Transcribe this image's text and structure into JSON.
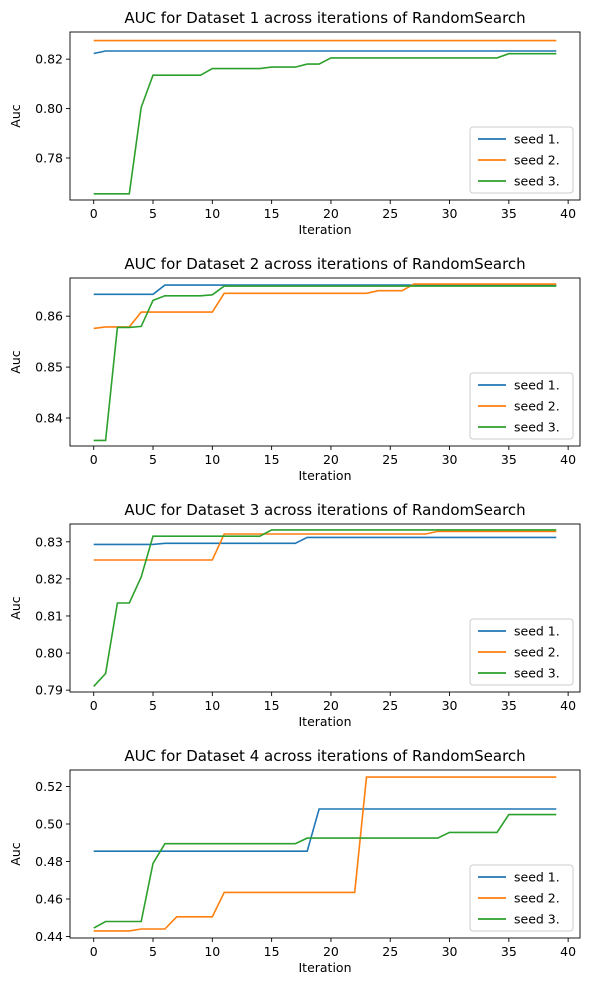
{
  "chart_data": [
    {
      "type": "line",
      "title": "AUC for Dataset 1 across iterations of RandomSearch",
      "xlabel": "Iteration",
      "ylabel": "Auc",
      "xlim": [
        -2,
        41
      ],
      "ylim": [
        0.763,
        0.831
      ],
      "xticks": [
        0,
        5,
        10,
        15,
        20,
        25,
        30,
        35,
        40
      ],
      "yticks": [
        0.78,
        0.8,
        0.82
      ],
      "ytick_labels": [
        "0.78",
        "0.80",
        "0.82"
      ],
      "legend": "lower-right",
      "colors": [
        "#1f77b4",
        "#ff7f0e",
        "#2ca02c"
      ],
      "series": [
        {
          "name": "seed 1.",
          "x": [
            0,
            1,
            39
          ],
          "y": [
            0.8223,
            0.8233,
            0.8233
          ]
        },
        {
          "name": "seed 2.",
          "x": [
            0,
            39
          ],
          "y": [
            0.8275,
            0.8275
          ]
        },
        {
          "name": "seed 3.",
          "x": [
            0,
            3,
            4,
            5,
            9,
            10,
            14,
            15,
            17,
            18,
            19,
            20,
            34,
            35,
            39
          ],
          "y": [
            0.7655,
            0.7655,
            0.8005,
            0.8135,
            0.8135,
            0.8162,
            0.8162,
            0.8168,
            0.8168,
            0.818,
            0.818,
            0.8205,
            0.8205,
            0.8222,
            0.8222
          ]
        }
      ]
    },
    {
      "type": "line",
      "title": "AUC for Dataset 2 across iterations of RandomSearch",
      "xlabel": "Iteration",
      "ylabel": "Auc",
      "xlim": [
        -2,
        41
      ],
      "ylim": [
        0.8345,
        0.8675
      ],
      "xticks": [
        0,
        5,
        10,
        15,
        20,
        25,
        30,
        35,
        40
      ],
      "yticks": [
        0.84,
        0.85,
        0.86
      ],
      "ytick_labels": [
        "0.84",
        "0.85",
        "0.86"
      ],
      "legend": "lower-right",
      "colors": [
        "#1f77b4",
        "#ff7f0e",
        "#2ca02c"
      ],
      "series": [
        {
          "name": "seed 1.",
          "x": [
            0,
            5,
            6,
            39
          ],
          "y": [
            0.8643,
            0.8643,
            0.8661,
            0.8661
          ]
        },
        {
          "name": "seed 2.",
          "x": [
            0,
            1,
            3,
            4,
            10,
            11,
            23,
            24,
            26,
            27,
            39
          ],
          "y": [
            0.8576,
            0.8579,
            0.8579,
            0.8608,
            0.8608,
            0.8645,
            0.8645,
            0.865,
            0.865,
            0.8663,
            0.8663
          ]
        },
        {
          "name": "seed 3.",
          "x": [
            0,
            1,
            2,
            3,
            4,
            5,
            6,
            9,
            10,
            11,
            39
          ],
          "y": [
            0.8356,
            0.8356,
            0.8578,
            0.8578,
            0.858,
            0.8631,
            0.864,
            0.864,
            0.8642,
            0.8659,
            0.8659
          ]
        }
      ]
    },
    {
      "type": "line",
      "title": "AUC for Dataset 3 across iterations of RandomSearch",
      "xlabel": "Iteration",
      "ylabel": "Auc",
      "xlim": [
        -2,
        41
      ],
      "ylim": [
        0.7895,
        0.8348
      ],
      "xticks": [
        0,
        5,
        10,
        15,
        20,
        25,
        30,
        35,
        40
      ],
      "yticks": [
        0.79,
        0.8,
        0.81,
        0.82,
        0.83
      ],
      "ytick_labels": [
        "0.79",
        "0.80",
        "0.81",
        "0.82",
        "0.83"
      ],
      "legend": "lower-right",
      "colors": [
        "#1f77b4",
        "#ff7f0e",
        "#2ca02c"
      ],
      "series": [
        {
          "name": "seed 1.",
          "x": [
            0,
            5,
            6,
            17,
            18,
            39
          ],
          "y": [
            0.8293,
            0.8293,
            0.8296,
            0.8296,
            0.8312,
            0.8312
          ]
        },
        {
          "name": "seed 2.",
          "x": [
            0,
            10,
            11,
            28,
            29,
            39
          ],
          "y": [
            0.8251,
            0.8251,
            0.8321,
            0.8321,
            0.8328,
            0.8328
          ]
        },
        {
          "name": "seed 3.",
          "x": [
            0,
            1,
            2,
            3,
            4,
            5,
            14,
            15,
            39
          ],
          "y": [
            0.791,
            0.7945,
            0.8135,
            0.8135,
            0.8205,
            0.8315,
            0.8315,
            0.8332,
            0.8332
          ]
        }
      ]
    },
    {
      "type": "line",
      "title": "AUC for Dataset 4 across iterations of RandomSearch",
      "xlabel": "Iteration",
      "ylabel": "Auc",
      "xlim": [
        -2,
        41
      ],
      "ylim": [
        0.4392,
        0.5288
      ],
      "xticks": [
        0,
        5,
        10,
        15,
        20,
        25,
        30,
        35,
        40
      ],
      "yticks": [
        0.44,
        0.46,
        0.48,
        0.5,
        0.52
      ],
      "ytick_labels": [
        "0.44",
        "0.46",
        "0.48",
        "0.50",
        "0.52"
      ],
      "legend": "lower-right",
      "colors": [
        "#1f77b4",
        "#ff7f0e",
        "#2ca02c"
      ],
      "series": [
        {
          "name": "seed 1.",
          "x": [
            0,
            18,
            19,
            39
          ],
          "y": [
            0.4855,
            0.4855,
            0.508,
            0.508
          ]
        },
        {
          "name": "seed 2.",
          "x": [
            0,
            3,
            4,
            6,
            7,
            10,
            11,
            22,
            23,
            39
          ],
          "y": [
            0.443,
            0.443,
            0.444,
            0.444,
            0.4505,
            0.4505,
            0.4635,
            0.4635,
            0.525,
            0.525
          ]
        },
        {
          "name": "seed 3.",
          "x": [
            0,
            1,
            4,
            5,
            6,
            17,
            18,
            29,
            30,
            34,
            35,
            39
          ],
          "y": [
            0.4445,
            0.448,
            0.448,
            0.479,
            0.4895,
            0.4895,
            0.4925,
            0.4925,
            0.4955,
            0.4955,
            0.505,
            0.505
          ]
        }
      ]
    }
  ]
}
